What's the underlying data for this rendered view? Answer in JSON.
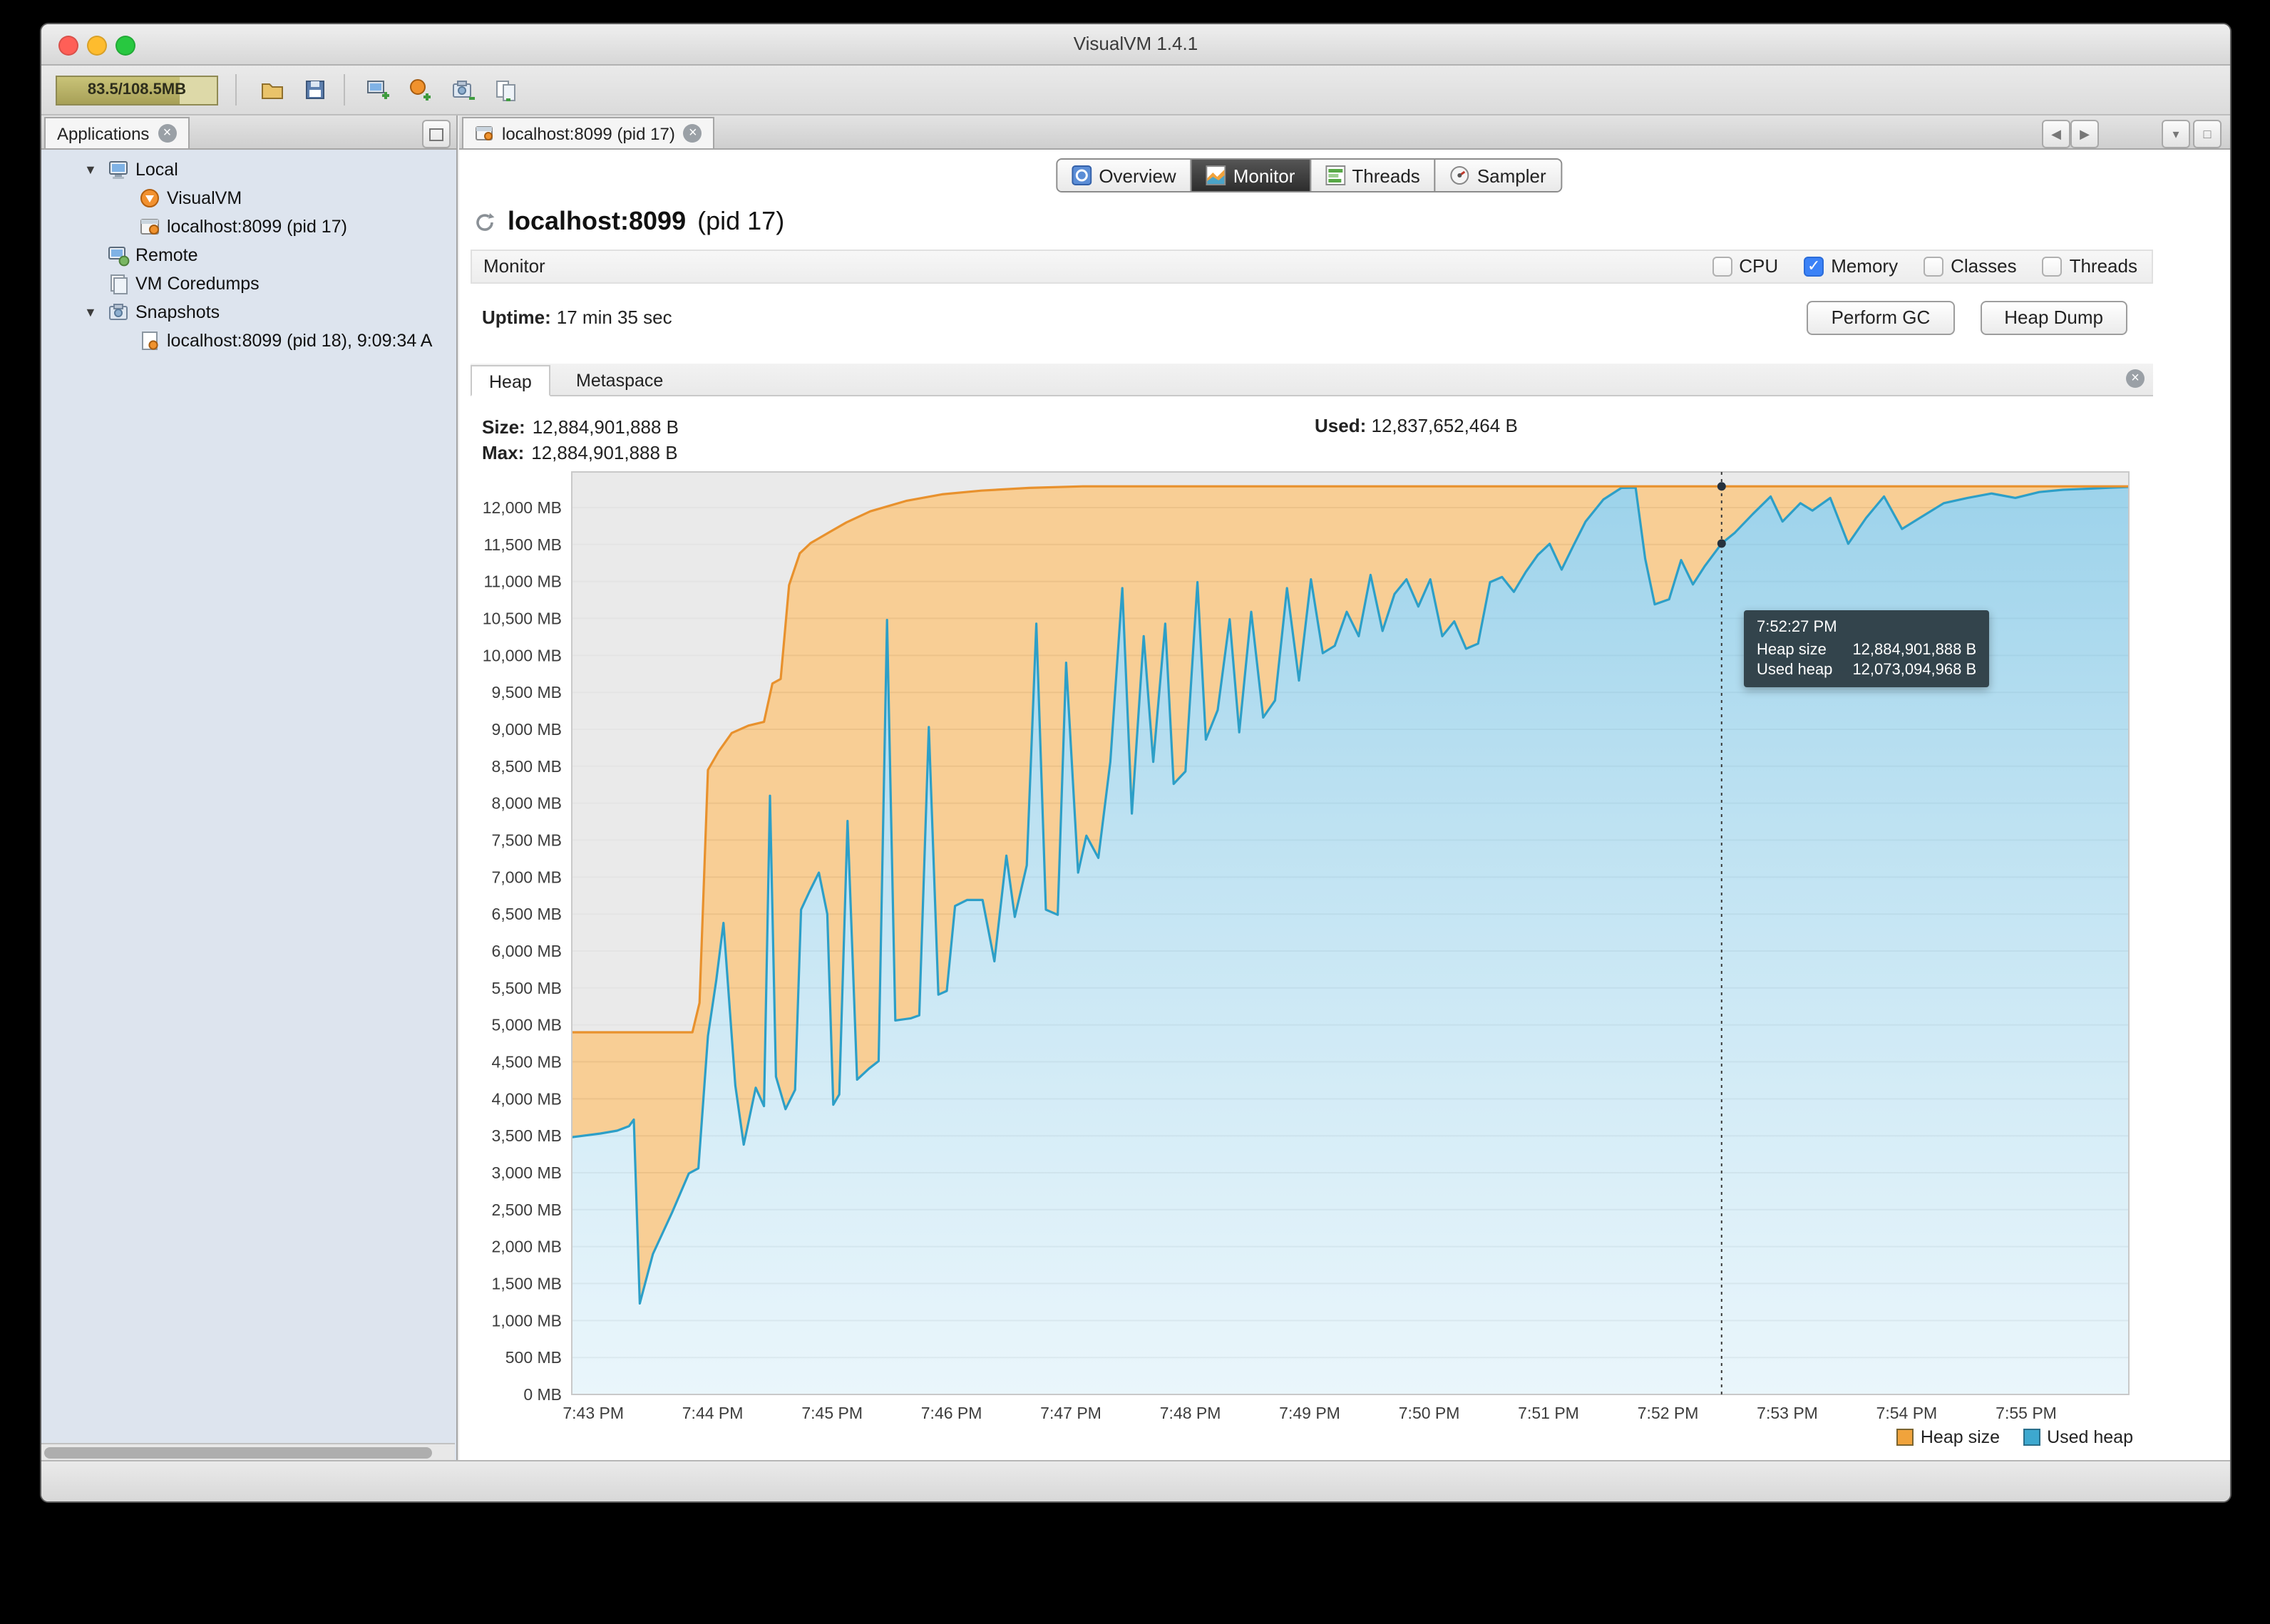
{
  "window": {
    "title": "VisualVM 1.4.1"
  },
  "toolbar": {
    "memory_gauge": "83.5/108.5MB"
  },
  "sidebar": {
    "tab_label": "Applications",
    "tree": [
      {
        "label": "Local",
        "level": 0,
        "expanded": true,
        "icon": "computer"
      },
      {
        "label": "VisualVM",
        "level": 1,
        "icon": "visualvm"
      },
      {
        "label": "localhost:8099 (pid 17)",
        "level": 1,
        "icon": "jmx-app"
      },
      {
        "label": "Remote",
        "level": 0,
        "icon": "remote"
      },
      {
        "label": "VM Coredumps",
        "level": 0,
        "icon": "coredump"
      },
      {
        "label": "Snapshots",
        "level": 0,
        "expanded": true,
        "icon": "snapshots"
      },
      {
        "label": "localhost:8099 (pid 18), 9:09:34 A",
        "level": 1,
        "icon": "snapshot"
      }
    ]
  },
  "document_tab": {
    "label": "localhost:8099 (pid 17)"
  },
  "view_tabs": [
    {
      "label": "Overview",
      "selected": false
    },
    {
      "label": "Monitor",
      "selected": true
    },
    {
      "label": "Threads",
      "selected": false
    },
    {
      "label": "Sampler",
      "selected": false
    }
  ],
  "header": {
    "title_bold": "localhost:8099",
    "title_rest": " (pid 17)"
  },
  "monitor": {
    "section_label": "Monitor",
    "checkboxes": [
      {
        "label": "CPU",
        "checked": false
      },
      {
        "label": "Memory",
        "checked": true
      },
      {
        "label": "Classes",
        "checked": false
      },
      {
        "label": "Threads",
        "checked": false
      }
    ],
    "uptime_label": "Uptime:",
    "uptime_value": "17 min 35 sec",
    "perform_gc": "Perform GC",
    "heap_dump": "Heap Dump"
  },
  "heap_tabs": [
    {
      "label": "Heap",
      "selected": true
    },
    {
      "label": "Metaspace",
      "selected": false
    }
  ],
  "stats": {
    "size_label": "Size:",
    "size_value": "12,884,901,888 B",
    "max_label": "Max:",
    "max_value": "12,884,901,888 B",
    "used_label": "Used:",
    "used_value": "12,837,652,464 B"
  },
  "tooltip": {
    "time": "7:52:27 PM",
    "heap_label": "Heap size",
    "heap_value": "12,884,901,888 B",
    "used_label": "Used heap",
    "used_value": "12,073,094,968 B"
  },
  "legend": {
    "items": [
      {
        "label": "Heap size",
        "color": "#f0a33c"
      },
      {
        "label": "Used heap",
        "color": "#3da8cf"
      }
    ]
  },
  "chart_data": {
    "type": "area",
    "title": "Heap monitor",
    "x_tick_labels": [
      "7:43 PM",
      "7:44 PM",
      "7:45 PM",
      "7:46 PM",
      "7:47 PM",
      "7:48 PM",
      "7:49 PM",
      "7:50 PM",
      "7:51 PM",
      "7:52 PM",
      "7:53 PM",
      "7:54 PM",
      "7:55 PM"
    ],
    "x_ticks": [
      0,
      1,
      2,
      3,
      4,
      5,
      6,
      7,
      8,
      9,
      10,
      11,
      12
    ],
    "x_unit": "minutes since 7:43 PM",
    "xlim": [
      -0.18,
      12.86
    ],
    "ylim": [
      0,
      12482
    ],
    "y_ticks_mb": {
      "min": 0,
      "max": 12000,
      "step": 500,
      "suffix": " MB"
    },
    "max_heap_mb": 12288,
    "max_region_color": "#eaeaea",
    "grid_color": "#e4e4e4",
    "legend_position": "bottom-right",
    "series": [
      {
        "name": "Heap size",
        "line_color": "#e8912d",
        "fill_color": "rgba(243,166,62,0.55)",
        "points": [
          [
            -0.18,
            4900
          ],
          [
            0.83,
            4900
          ],
          [
            0.89,
            5300
          ],
          [
            0.96,
            8450
          ],
          [
            1.05,
            8700
          ],
          [
            1.16,
            8950
          ],
          [
            1.3,
            9050
          ],
          [
            1.43,
            9100
          ],
          [
            1.5,
            9620
          ],
          [
            1.57,
            9680
          ],
          [
            1.64,
            10950
          ],
          [
            1.73,
            11380
          ],
          [
            1.82,
            11520
          ],
          [
            1.97,
            11660
          ],
          [
            2.12,
            11800
          ],
          [
            2.32,
            11950
          ],
          [
            2.62,
            12090
          ],
          [
            2.92,
            12180
          ],
          [
            3.25,
            12230
          ],
          [
            3.65,
            12265
          ],
          [
            4.1,
            12288
          ],
          [
            12.86,
            12288
          ]
        ]
      },
      {
        "name": "Used heap",
        "line_color": "#2d9fc7",
        "fill_color": "gradient-blue",
        "points": [
          [
            -0.18,
            3480
          ],
          [
            0.06,
            3530
          ],
          [
            0.2,
            3570
          ],
          [
            0.3,
            3630
          ],
          [
            0.34,
            3720
          ],
          [
            0.39,
            1230
          ],
          [
            0.5,
            1900
          ],
          [
            0.66,
            2460
          ],
          [
            0.8,
            2990
          ],
          [
            0.88,
            3060
          ],
          [
            0.96,
            4850
          ],
          [
            1.03,
            5600
          ],
          [
            1.09,
            6380
          ],
          [
            1.19,
            4180
          ],
          [
            1.26,
            3380
          ],
          [
            1.36,
            4150
          ],
          [
            1.43,
            3900
          ],
          [
            1.48,
            8100
          ],
          [
            1.53,
            4300
          ],
          [
            1.61,
            3860
          ],
          [
            1.69,
            4120
          ],
          [
            1.74,
            6560
          ],
          [
            1.81,
            6800
          ],
          [
            1.89,
            7060
          ],
          [
            1.96,
            6500
          ],
          [
            2.01,
            3920
          ],
          [
            2.06,
            4060
          ],
          [
            2.13,
            7760
          ],
          [
            2.21,
            4260
          ],
          [
            2.31,
            4410
          ],
          [
            2.39,
            4510
          ],
          [
            2.46,
            10480
          ],
          [
            2.53,
            5060
          ],
          [
            2.66,
            5090
          ],
          [
            2.73,
            5130
          ],
          [
            2.81,
            9030
          ],
          [
            2.89,
            5410
          ],
          [
            2.96,
            5460
          ],
          [
            3.03,
            6610
          ],
          [
            3.13,
            6690
          ],
          [
            3.26,
            6690
          ],
          [
            3.36,
            5860
          ],
          [
            3.46,
            7290
          ],
          [
            3.53,
            6460
          ],
          [
            3.63,
            7160
          ],
          [
            3.71,
            10430
          ],
          [
            3.79,
            6560
          ],
          [
            3.89,
            6490
          ],
          [
            3.96,
            9900
          ],
          [
            4.06,
            7060
          ],
          [
            4.13,
            7560
          ],
          [
            4.23,
            7260
          ],
          [
            4.33,
            8560
          ],
          [
            4.43,
            10910
          ],
          [
            4.51,
            7860
          ],
          [
            4.61,
            10260
          ],
          [
            4.69,
            8560
          ],
          [
            4.79,
            10430
          ],
          [
            4.86,
            8260
          ],
          [
            4.96,
            8430
          ],
          [
            5.06,
            10990
          ],
          [
            5.13,
            8860
          ],
          [
            5.23,
            9260
          ],
          [
            5.33,
            10490
          ],
          [
            5.41,
            8960
          ],
          [
            5.51,
            10590
          ],
          [
            5.61,
            9160
          ],
          [
            5.71,
            9390
          ],
          [
            5.81,
            10910
          ],
          [
            5.91,
            9660
          ],
          [
            6.01,
            11030
          ],
          [
            6.11,
            10030
          ],
          [
            6.21,
            10130
          ],
          [
            6.31,
            10590
          ],
          [
            6.41,
            10260
          ],
          [
            6.51,
            11090
          ],
          [
            6.61,
            10330
          ],
          [
            6.71,
            10830
          ],
          [
            6.81,
            11030
          ],
          [
            6.91,
            10660
          ],
          [
            7.01,
            11030
          ],
          [
            7.11,
            10260
          ],
          [
            7.21,
            10460
          ],
          [
            7.31,
            10090
          ],
          [
            7.41,
            10160
          ],
          [
            7.51,
            10990
          ],
          [
            7.61,
            11060
          ],
          [
            7.71,
            10860
          ],
          [
            7.81,
            11130
          ],
          [
            7.91,
            11360
          ],
          [
            8.01,
            11510
          ],
          [
            8.11,
            11160
          ],
          [
            8.21,
            11490
          ],
          [
            8.31,
            11810
          ],
          [
            8.46,
            12110
          ],
          [
            8.61,
            12265
          ],
          [
            8.73,
            12270
          ],
          [
            8.81,
            11310
          ],
          [
            8.89,
            10690
          ],
          [
            9.01,
            10760
          ],
          [
            9.11,
            11290
          ],
          [
            9.21,
            10960
          ],
          [
            9.31,
            11210
          ],
          [
            9.45,
            11514
          ],
          [
            9.56,
            11660
          ],
          [
            9.71,
            11910
          ],
          [
            9.86,
            12150
          ],
          [
            9.96,
            11810
          ],
          [
            10.11,
            12060
          ],
          [
            10.21,
            11960
          ],
          [
            10.36,
            12130
          ],
          [
            10.51,
            11510
          ],
          [
            10.66,
            11860
          ],
          [
            10.81,
            12150
          ],
          [
            10.96,
            11710
          ],
          [
            11.11,
            11860
          ],
          [
            11.31,
            12060
          ],
          [
            11.51,
            12130
          ],
          [
            11.71,
            12190
          ],
          [
            11.91,
            12130
          ],
          [
            12.11,
            12210
          ],
          [
            12.31,
            12240
          ],
          [
            12.51,
            12255
          ],
          [
            12.71,
            12270
          ],
          [
            12.86,
            12280
          ]
        ]
      }
    ],
    "cursor": {
      "t": 9.45,
      "time_label": "7:52:27 PM",
      "heap_mb": 12288,
      "used_mb": 11514
    }
  }
}
